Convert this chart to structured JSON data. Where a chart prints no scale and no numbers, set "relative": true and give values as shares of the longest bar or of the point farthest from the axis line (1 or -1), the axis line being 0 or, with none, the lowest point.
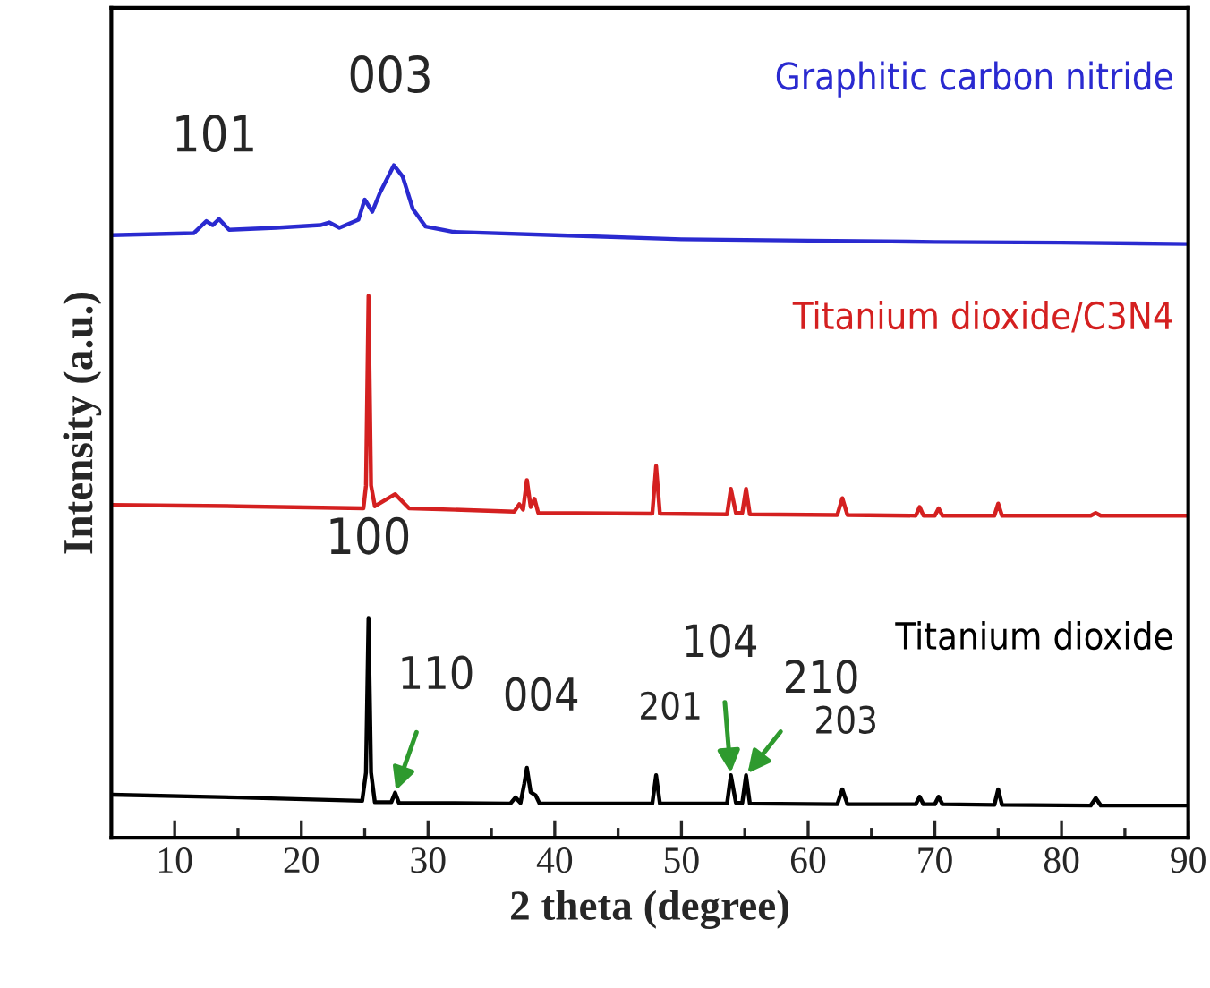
{
  "chart_data": {
    "type": "line",
    "relative": true,
    "xlabel": "2 theta (degree)",
    "ylabel": "Intensity (a.u.)",
    "xlim": [
      5,
      90
    ],
    "xticks": [
      10,
      {
        "value": 15,
        "label": null
      },
      20,
      {
        "value": 25,
        "label": null
      },
      30,
      {
        "value": 35,
        "label": null
      },
      40,
      {
        "value": 45,
        "label": null
      },
      50,
      {
        "value": 55,
        "label": null
      },
      60,
      {
        "value": 65,
        "label": null
      },
      70,
      {
        "value": 75,
        "label": null
      },
      80,
      {
        "value": 85,
        "label": null
      },
      90
    ],
    "grid": false,
    "legend": false,
    "marker": "none",
    "line_style": "solid",
    "series": [
      {
        "name": "Graphitic carbon nitride",
        "color": "#2a2ad0",
        "x": [
          5,
          11.5,
          12.5,
          13.0,
          13.5,
          14.3,
          18,
          21.5,
          22.2,
          23,
          24.5,
          25.0,
          25.6,
          26.2,
          27.3,
          28.0,
          28.8,
          29.8,
          32,
          40,
          50,
          60,
          70,
          80,
          90
        ],
        "values": [
          0.896,
          0.899,
          0.917,
          0.911,
          0.92,
          0.904,
          0.907,
          0.911,
          0.915,
          0.907,
          0.919,
          0.949,
          0.931,
          0.959,
          1.0,
          0.983,
          0.935,
          0.909,
          0.901,
          0.896,
          0.89,
          0.888,
          0.886,
          0.885,
          0.883
        ]
      },
      {
        "name": "Titanium dioxide/C3N4",
        "color": "#d42020",
        "x": [
          5,
          15,
          24.9,
          25.1,
          25.3,
          25.5,
          25.8,
          27.4,
          28.5,
          36.8,
          37.2,
          37.5,
          37.8,
          38.1,
          38.4,
          38.7,
          47.7,
          48.0,
          48.3,
          53.6,
          53.9,
          54.3,
          54.8,
          55.1,
          55.4,
          62.3,
          62.7,
          63.1,
          68.5,
          68.8,
          69.1,
          70.0,
          70.3,
          70.6,
          74.7,
          75.0,
          75.3,
          82.3,
          82.7,
          83.1,
          90
        ],
        "values": [
          0.495,
          0.493,
          0.49,
          0.524,
          0.806,
          0.524,
          0.493,
          0.511,
          0.49,
          0.485,
          0.496,
          0.488,
          0.532,
          0.492,
          0.504,
          0.483,
          0.482,
          0.553,
          0.482,
          0.481,
          0.519,
          0.483,
          0.483,
          0.519,
          0.481,
          0.48,
          0.505,
          0.48,
          0.479,
          0.492,
          0.479,
          0.479,
          0.49,
          0.479,
          0.479,
          0.497,
          0.479,
          0.479,
          0.483,
          0.479,
          0.479
        ]
      },
      {
        "name": "Titanium dioxide",
        "color": "#000000",
        "x": [
          5,
          15,
          24.8,
          25.1,
          25.3,
          25.5,
          25.8,
          27.1,
          27.4,
          27.7,
          36.5,
          36.9,
          37.3,
          37.6,
          37.8,
          38.1,
          38.5,
          38.8,
          47.7,
          48.0,
          48.3,
          53.6,
          53.9,
          54.3,
          54.8,
          55.1,
          55.4,
          62.3,
          62.7,
          63.1,
          68.5,
          68.8,
          69.1,
          70.0,
          70.3,
          70.6,
          74.7,
          75.0,
          75.3,
          82.3,
          82.7,
          83.1,
          90
        ],
        "values": [
          0.064,
          0.06,
          0.055,
          0.097,
          0.327,
          0.097,
          0.053,
          0.053,
          0.067,
          0.052,
          0.051,
          0.06,
          0.052,
          0.081,
          0.104,
          0.068,
          0.063,
          0.051,
          0.051,
          0.093,
          0.051,
          0.051,
          0.093,
          0.052,
          0.052,
          0.093,
          0.051,
          0.05,
          0.072,
          0.05,
          0.05,
          0.061,
          0.05,
          0.05,
          0.061,
          0.05,
          0.049,
          0.072,
          0.049,
          0.048,
          0.059,
          0.048,
          0.048
        ]
      }
    ],
    "annotations": [
      {
        "text": "101",
        "x": 13.0,
        "y": 0.92
      },
      {
        "text": "003",
        "x": 27.3,
        "y": 1.0
      },
      {
        "text": "100",
        "x": 25.3,
        "y": 0.327
      },
      {
        "text": "110",
        "x": 27.4,
        "y": 0.067
      },
      {
        "text": "004",
        "x": 37.8,
        "y": 0.104
      },
      {
        "text": "201",
        "x": 48.0,
        "y": 0.093
      },
      {
        "text": "104",
        "x": 53.9,
        "y": 0.093
      },
      {
        "text": "210",
        "x": 55.1,
        "y": 0.093
      },
      {
        "text": "203",
        "x": 62.7,
        "y": 0.072
      }
    ]
  }
}
